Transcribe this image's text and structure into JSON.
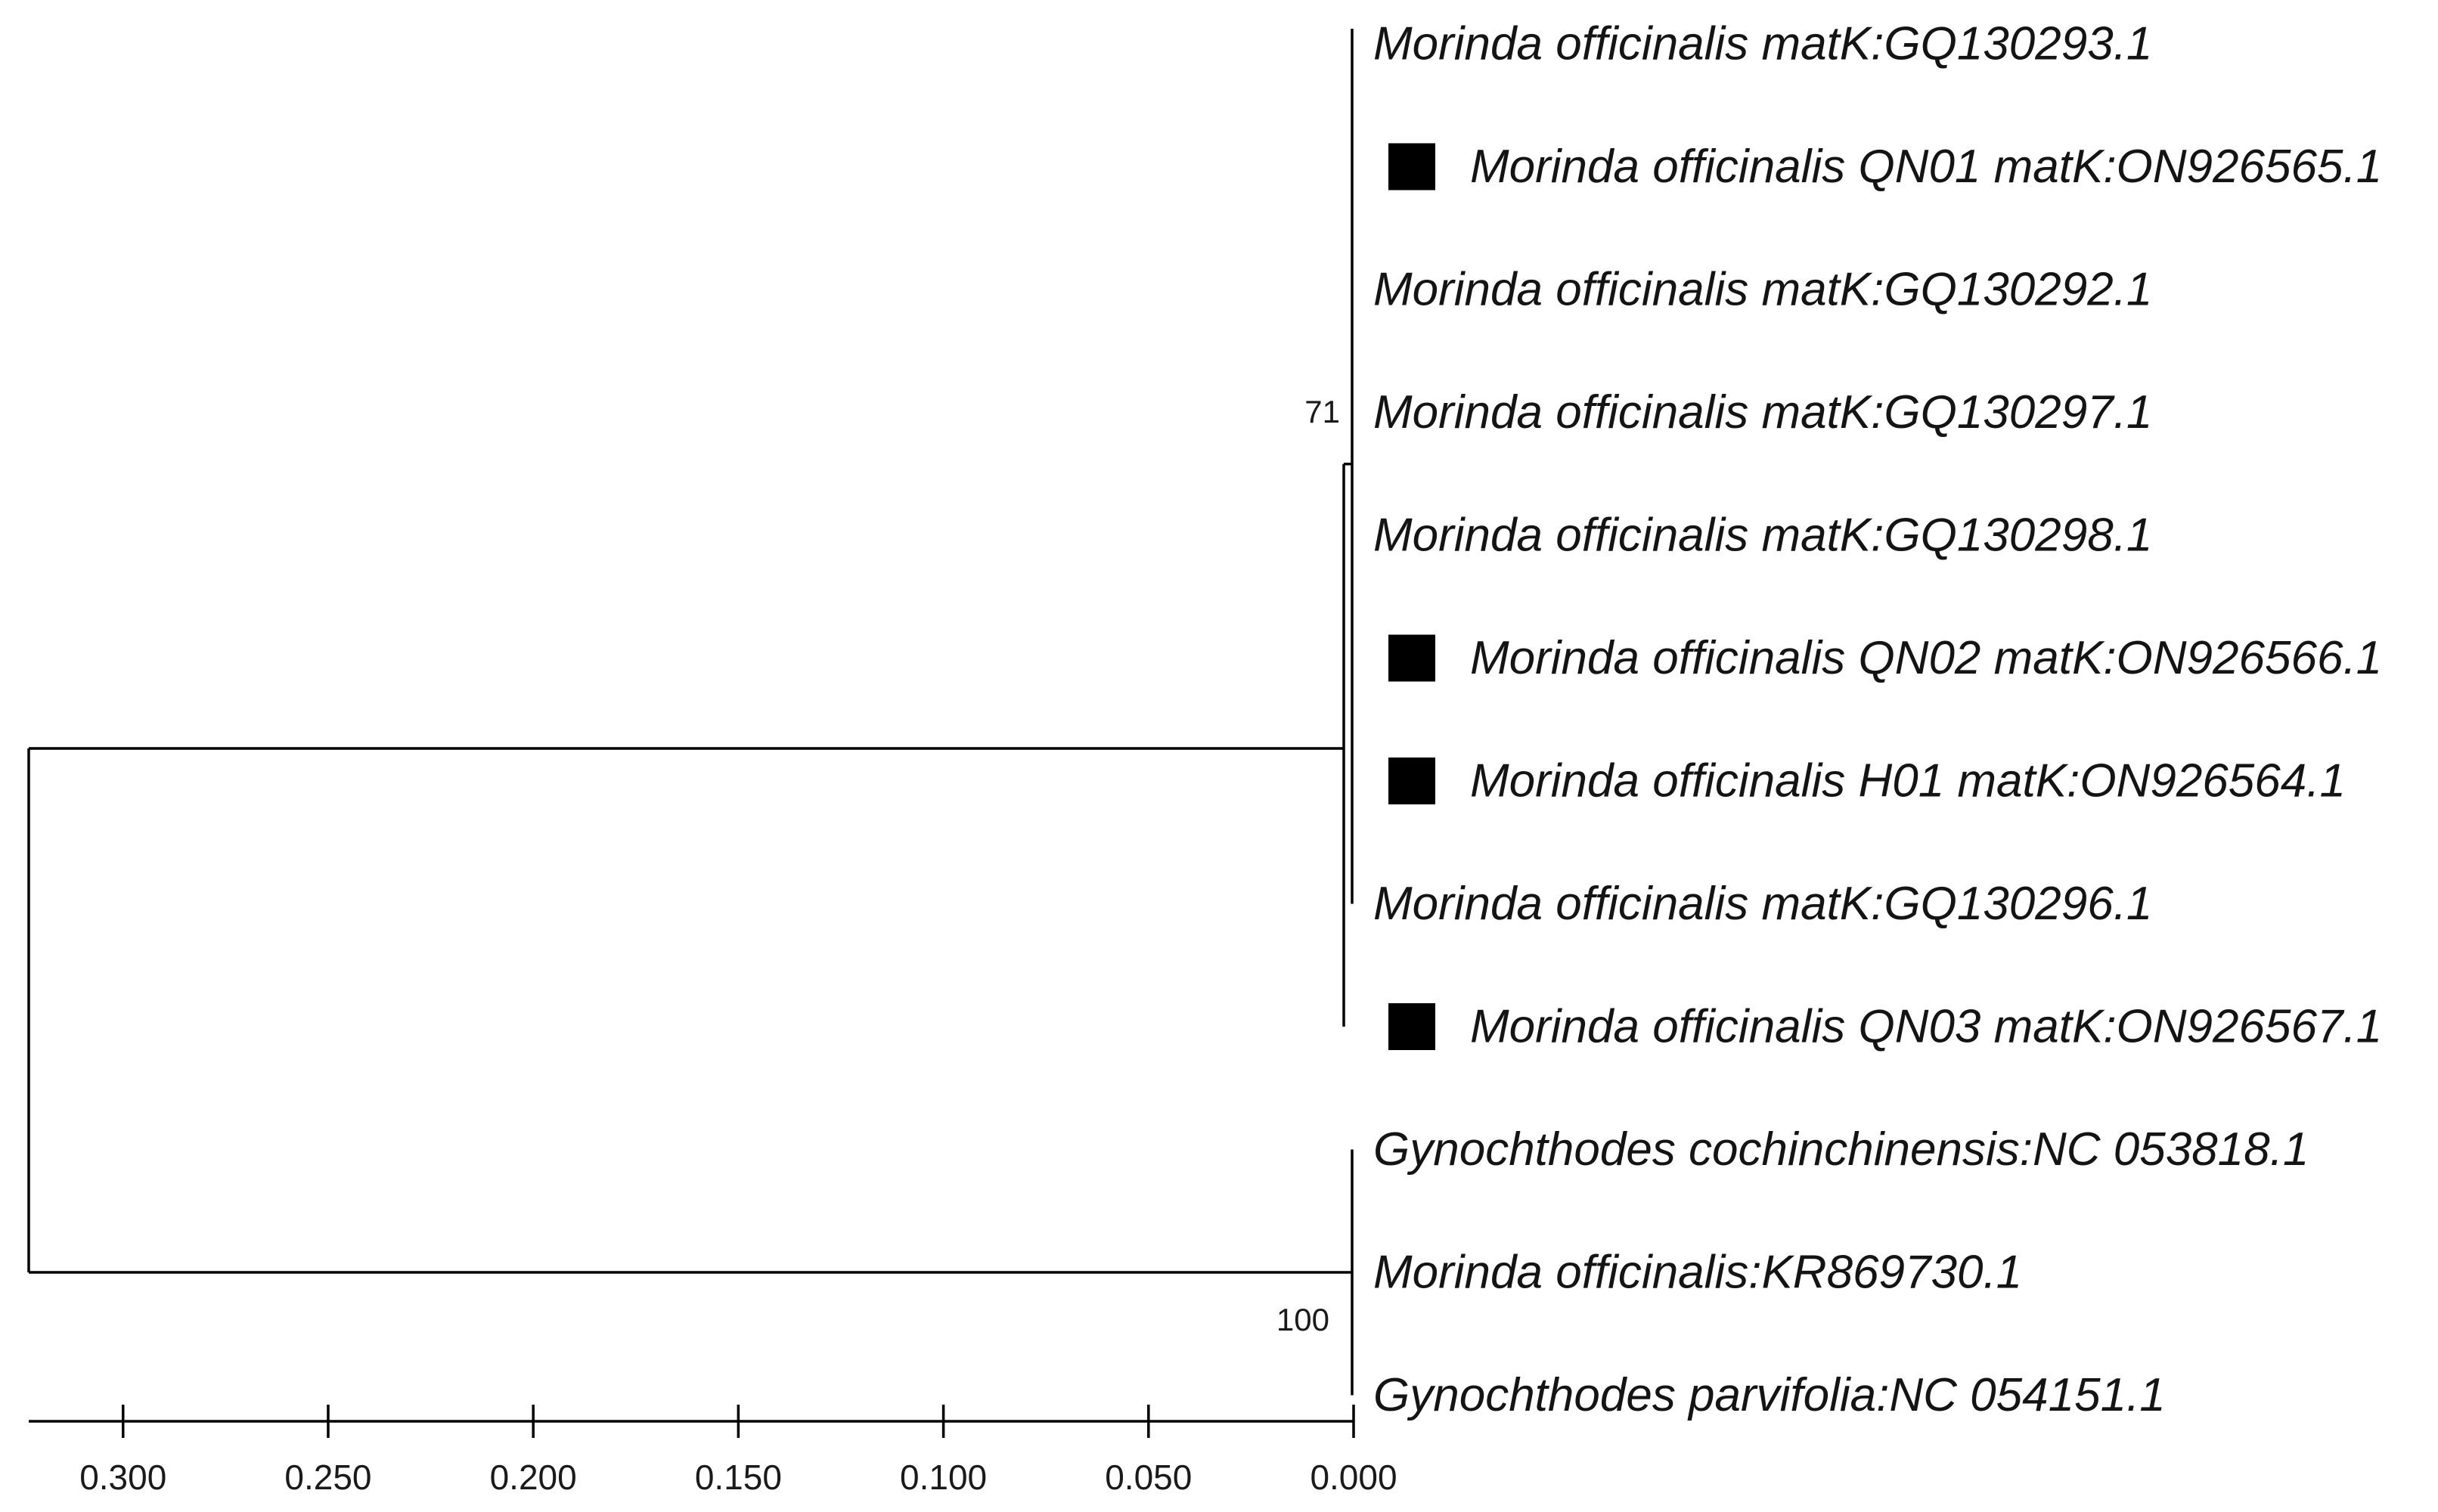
{
  "tree": {
    "type": "phylogenetic-tree",
    "colors": {
      "line": "#000000",
      "text": "#141414",
      "marker": "#000000"
    },
    "taxa": [
      {
        "label": "Morinda officinalis matK:GQ130293.1",
        "marked": false
      },
      {
        "label": "Morinda officinalis QN01 matK:ON926565.1",
        "marked": true
      },
      {
        "label": "Morinda officinalis matK:GQ130292.1",
        "marked": false
      },
      {
        "label": "Morinda officinalis matK:GQ130297.1",
        "marked": false
      },
      {
        "label": "Morinda officinalis matK:GQ130298.1",
        "marked": false
      },
      {
        "label": "Morinda officinalis QN02 matK:ON926566.1",
        "marked": true
      },
      {
        "label": "Morinda officinalis H01 matK:ON926564.1",
        "marked": true
      },
      {
        "label": "Morinda officinalis matK:GQ130296.1",
        "marked": false
      },
      {
        "label": "Morinda officinalis QN03 matK:ON926567.1",
        "marked": true
      },
      {
        "label": "Gynochthodes cochinchinensis:NC 053818.1",
        "marked": false
      },
      {
        "label": "Morinda officinalis:KR869730.1",
        "marked": false
      },
      {
        "label": "Gynochthodes parvifolia:NC 054151.1",
        "marked": false
      }
    ],
    "clades": [
      {
        "bootstrap": "71",
        "members": [
          0,
          1,
          2,
          3,
          4,
          5,
          6,
          7
        ]
      },
      {
        "bootstrap": "",
        "members": [
          0,
          1,
          2,
          3,
          4,
          5,
          6,
          7,
          8
        ]
      },
      {
        "bootstrap": "100",
        "members": [
          9,
          10,
          11
        ]
      }
    ],
    "root_distance": 0.323,
    "scale": {
      "ticks": [
        "0.300",
        "0.250",
        "0.200",
        "0.150",
        "0.100",
        "0.050",
        "0.000"
      ],
      "min": 0.0,
      "max": 0.323
    }
  }
}
